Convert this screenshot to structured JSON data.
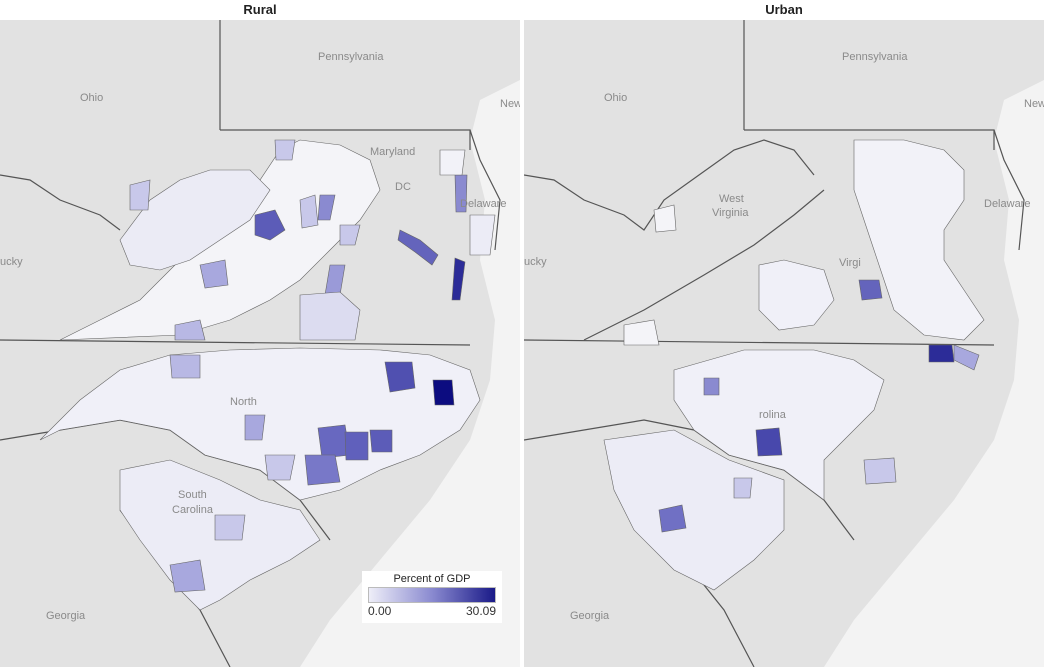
{
  "panels": {
    "left": {
      "title": "Rural"
    },
    "right": {
      "title": "Urban"
    }
  },
  "labels": {
    "left": [
      "Ohio",
      "Pennsylvania",
      "Maryland",
      "DC",
      "Delaware",
      "New",
      "ucky",
      "North",
      "South",
      "Carolina",
      "Georgia"
    ],
    "right": [
      "Ohio",
      "Pennsylvania",
      "West",
      "Virginia",
      "Delaware",
      "New",
      "ucky",
      "Virgi",
      "rolina",
      "Georgia"
    ]
  },
  "legend": {
    "title": "Percent of GDP",
    "min": "0.00",
    "max": "30.09",
    "colors": [
      "#eeeef8",
      "#8a8ad0",
      "#1a1a88"
    ]
  }
}
